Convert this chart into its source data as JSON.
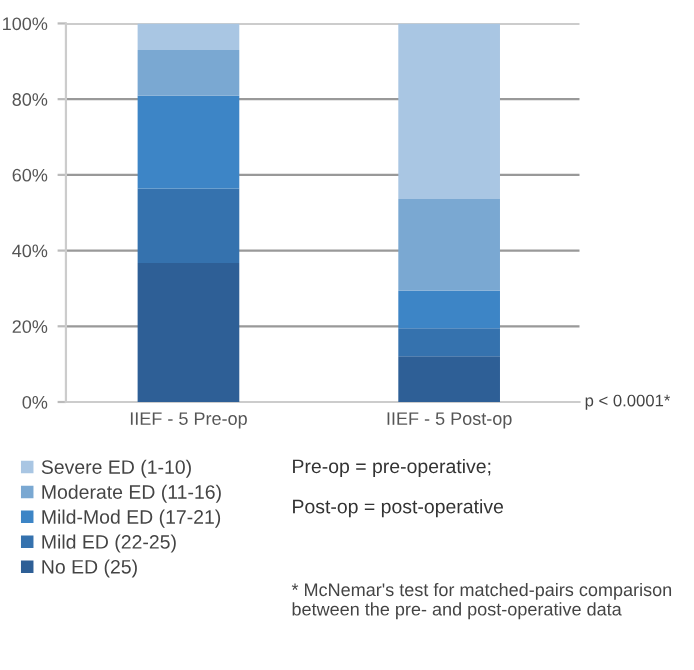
{
  "chart_data": {
    "type": "bar",
    "stacked": true,
    "categories": [
      "IIEF - 5 Pre-op",
      "IIEF - 5 Post-op"
    ],
    "series": [
      {
        "name": "No ED (25)",
        "color": "#2e5f96",
        "values": [
          36.7,
          12.1
        ]
      },
      {
        "name": "Mild ED (22-25)",
        "color": "#3572ae",
        "values": [
          19.7,
          7.4
        ]
      },
      {
        "name": "Mild-Mod ED (17-21)",
        "color": "#3d85c6",
        "values": [
          24.5,
          9.9
        ]
      },
      {
        "name": "Moderate ED (11-16)",
        "color": "#7aa8d2",
        "values": [
          12.1,
          24.2
        ]
      },
      {
        "name": "Severe ED (1-10)",
        "color": "#a9c6e3",
        "values": [
          7.0,
          46.4
        ]
      }
    ],
    "ylim": [
      0,
      100
    ],
    "yticks": [
      {
        "value": 0,
        "label": "0%"
      },
      {
        "value": 20,
        "label": "20%"
      },
      {
        "value": 40,
        "label": "40%"
      },
      {
        "value": 60,
        "label": "60%"
      },
      {
        "value": 80,
        "label": "80%"
      },
      {
        "value": 100,
        "label": "100%"
      }
    ],
    "grid": "y",
    "legend": "bottom",
    "annotations": [
      "p < 0.0001*",
      "Pre-op = pre-operative;",
      "Post-op = post-operative",
      "* McNemar's test for matched-pairs comparison between the pre- and post-operative data"
    ]
  }
}
